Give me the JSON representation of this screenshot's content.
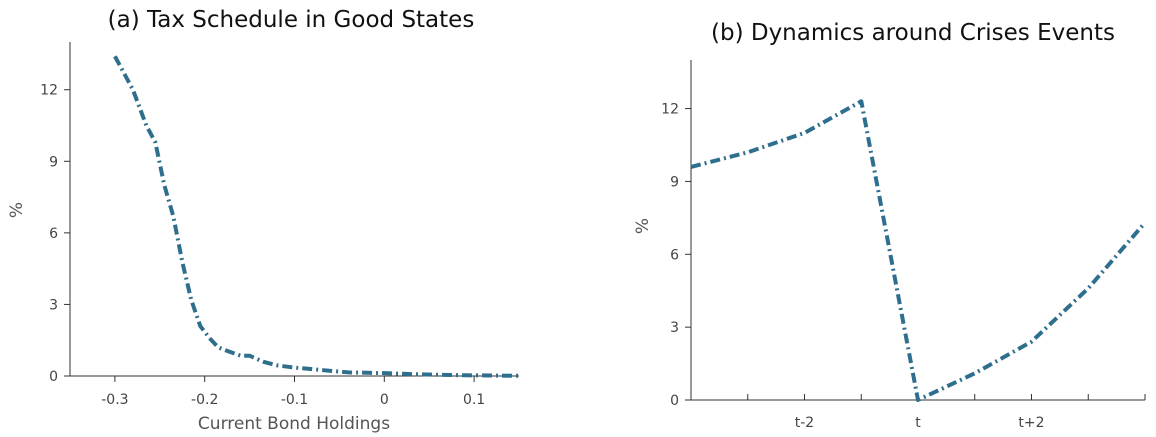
{
  "chart_data": [
    {
      "type": "line",
      "title": "(a) Tax Schedule in Good States",
      "xlabel": "Current Bond Holdings",
      "ylabel": "%",
      "xlim": [
        -0.35,
        0.15
      ],
      "ylim": [
        0,
        14
      ],
      "xticks": [
        -0.3,
        -0.2,
        -0.1,
        0,
        0.1
      ],
      "xtick_labels": [
        "-0.3",
        "-0.2",
        "-0.1",
        "0",
        "0.1"
      ],
      "yticks": [
        0,
        3,
        6,
        9,
        12
      ],
      "ytick_labels": [
        "0",
        "3",
        "6",
        "9",
        "12"
      ],
      "grid": false,
      "series": [
        {
          "color": "#2e6f8e",
          "x": [
            -0.3,
            -0.28,
            -0.265,
            -0.255,
            -0.245,
            -0.235,
            -0.225,
            -0.215,
            -0.205,
            -0.195,
            -0.185,
            -0.175,
            -0.16,
            -0.15,
            -0.135,
            -0.12,
            -0.1,
            -0.07,
            -0.04,
            0,
            0.03,
            0.06,
            0.09,
            0.12,
            0.15
          ],
          "y": [
            13.4,
            12,
            10.5,
            9.8,
            8,
            6.7,
            4.8,
            3.2,
            2.1,
            1.6,
            1.2,
            1.05,
            0.85,
            0.85,
            0.6,
            0.45,
            0.35,
            0.25,
            0.15,
            0.12,
            0.08,
            0.05,
            0.03,
            0.02,
            0.01
          ]
        }
      ]
    },
    {
      "type": "line",
      "title": "(b) Dynamics around Crises Events",
      "xlabel": "",
      "ylabel": "%",
      "xlim": [
        -4,
        4
      ],
      "ylim": [
        0,
        14
      ],
      "xticks": [
        -4,
        -3,
        -2,
        -1,
        0,
        1,
        2,
        3,
        4
      ],
      "xtick_labels": [
        "",
        "",
        "t-2",
        "",
        "t",
        "",
        "t+2",
        "",
        ""
      ],
      "yticks": [
        0,
        3,
        6,
        9,
        12
      ],
      "ytick_labels": [
        "0",
        "3",
        "6",
        "9",
        "12"
      ],
      "grid": false,
      "series": [
        {
          "color": "#2e6f8e",
          "x": [
            -4,
            -3,
            -2,
            -1,
            0,
            1,
            2,
            3,
            4
          ],
          "y": [
            9.6,
            10.2,
            11,
            12.3,
            0,
            1.1,
            2.4,
            4.6,
            7.3
          ]
        }
      ]
    }
  ]
}
